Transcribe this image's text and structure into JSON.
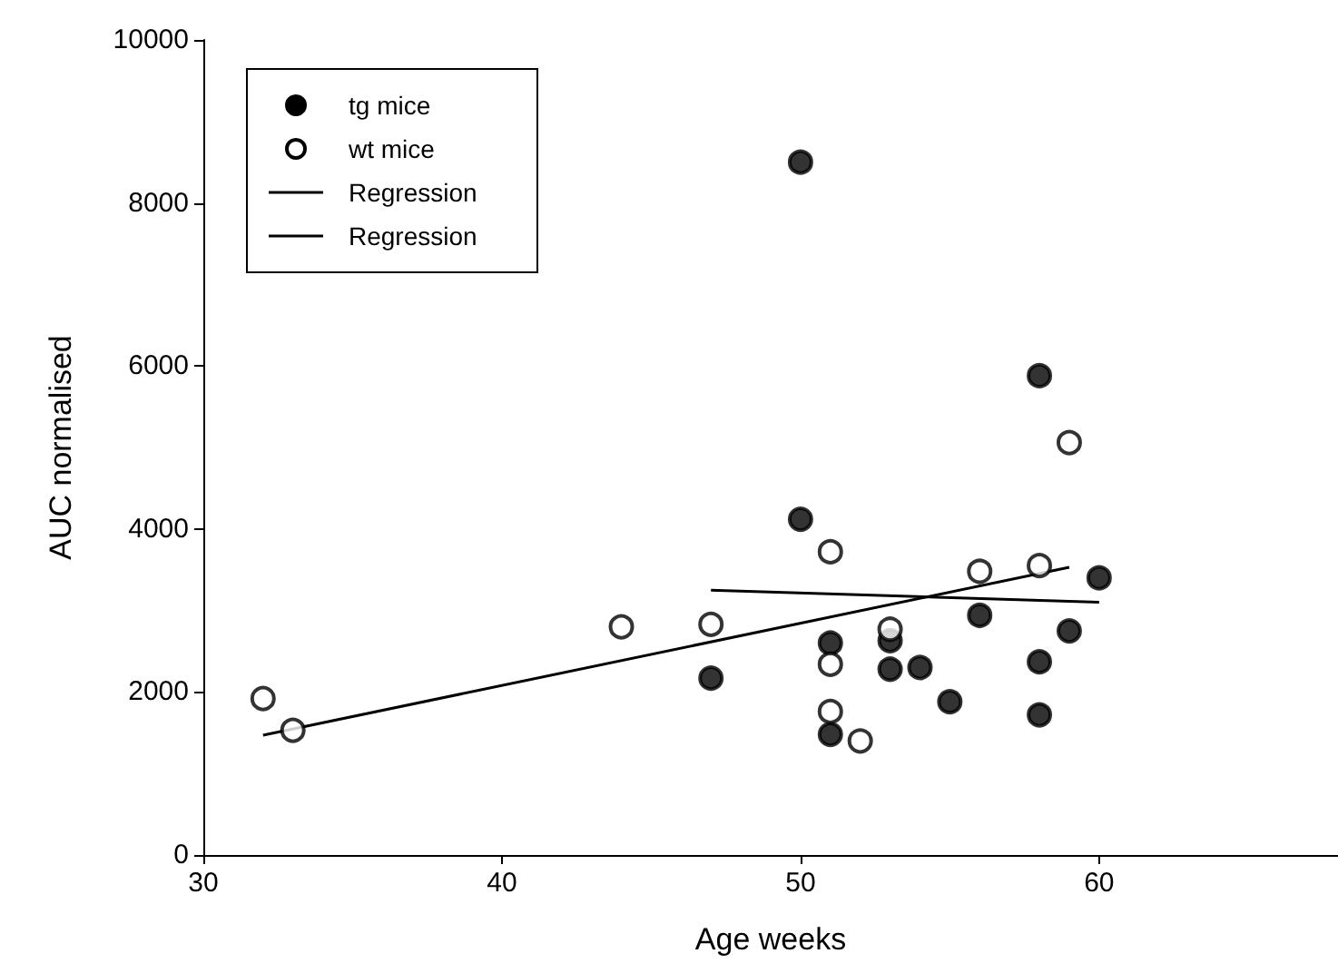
{
  "chart_data": {
    "type": "scatter",
    "xlabel": "Age weeks",
    "ylabel": "AUC normalised",
    "xlim": [
      30,
      68
    ],
    "xticks": [
      30,
      40,
      50,
      60
    ],
    "ylim": [
      0,
      10000
    ],
    "yticks": [
      0,
      2000,
      4000,
      6000,
      8000,
      10000
    ],
    "grid": false,
    "legend": "top left",
    "marker": "circle",
    "series": [
      {
        "name": "tg mice",
        "color": "#000000",
        "x": [
          50,
          50,
          58,
          47,
          51,
          51,
          53,
          53,
          54,
          55,
          56,
          58,
          58,
          59,
          60
        ],
        "values": [
          8500,
          4120,
          5880,
          2170,
          2600,
          1480,
          2630,
          2280,
          2300,
          1880,
          2940,
          2370,
          1720,
          2750,
          3400
        ]
      },
      {
        "name": "wt mice",
        "color": "#ffffff",
        "x": [
          32,
          33,
          44,
          47,
          51,
          51,
          51,
          52,
          53,
          56,
          58,
          59
        ],
        "values": [
          1920,
          1530,
          2800,
          2830,
          3720,
          2340,
          1760,
          1400,
          2770,
          3480,
          3550,
          5060
        ]
      },
      {
        "name": "Regression",
        "type": "line",
        "marker": "none",
        "color": "#000000",
        "x": [
          47,
          60
        ],
        "values": [
          3250,
          3100
        ]
      },
      {
        "name": "Regression",
        "type": "line",
        "marker": "none",
        "color": "#000000",
        "x": [
          32,
          59
        ],
        "values": [
          1470,
          3530
        ]
      }
    ]
  }
}
